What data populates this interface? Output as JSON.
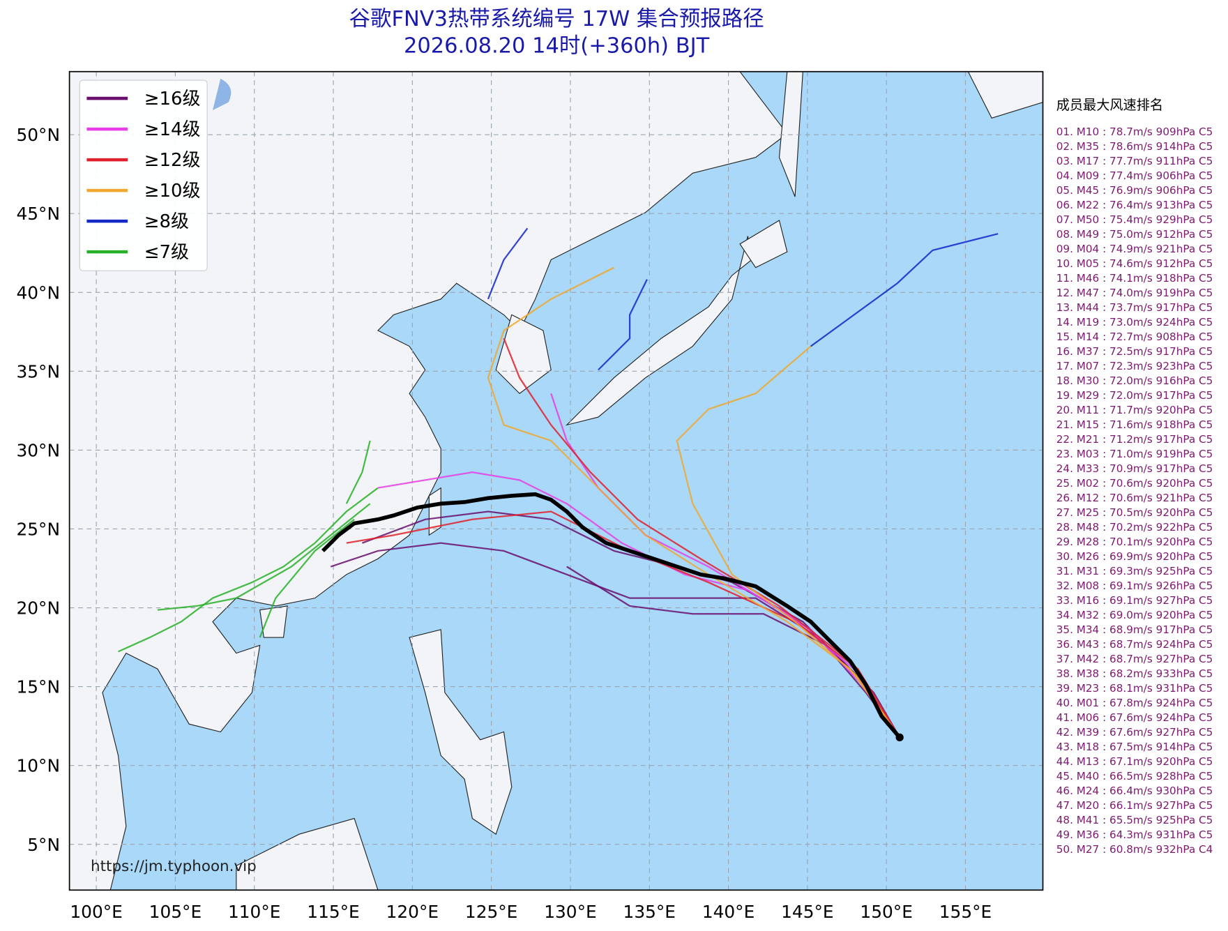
{
  "header": {
    "title": "谷歌FNV3热带系统编号 17W 集合预报路径",
    "subtitle": "2026.08.20 14时(+360h) BJT"
  },
  "map": {
    "lon_range": [
      98.3,
      159.9
    ],
    "lat_range": [
      2.1,
      54.0
    ],
    "lon_ticks": [
      {
        "value": 100,
        "label": "100°E"
      },
      {
        "value": 105,
        "label": "105°E"
      },
      {
        "value": 110,
        "label": "110°E"
      },
      {
        "value": 115,
        "label": "115°E"
      },
      {
        "value": 120,
        "label": "120°E"
      },
      {
        "value": 125,
        "label": "125°E"
      },
      {
        "value": 130,
        "label": "130°E"
      },
      {
        "value": 135,
        "label": "135°E"
      },
      {
        "value": 140,
        "label": "140°E"
      },
      {
        "value": 145,
        "label": "145°E"
      },
      {
        "value": 150,
        "label": "150°E"
      },
      {
        "value": 155,
        "label": "155°E"
      }
    ],
    "lat_ticks": [
      {
        "value": 5,
        "label": "5°N"
      },
      {
        "value": 10,
        "label": "10°N"
      },
      {
        "value": 15,
        "label": "15°N"
      },
      {
        "value": 20,
        "label": "20°N"
      },
      {
        "value": 25,
        "label": "25°N"
      },
      {
        "value": 30,
        "label": "30°N"
      },
      {
        "value": 35,
        "label": "35°N"
      },
      {
        "value": 40,
        "label": "40°N"
      },
      {
        "value": 45,
        "label": "45°N"
      },
      {
        "value": 50,
        "label": "50°N"
      }
    ],
    "legend": [
      {
        "label": "≥16级",
        "color": "#6a0f6e"
      },
      {
        "label": "≥14级",
        "color": "#e83ee8"
      },
      {
        "label": "≥12级",
        "color": "#e0202a"
      },
      {
        "label": "≥10级",
        "color": "#f0a830"
      },
      {
        "label": "≥8级",
        "color": "#1428c8"
      },
      {
        "label": "≤7级",
        "color": "#28b028"
      }
    ],
    "watermark": "https://jm.typhoon.vip"
  },
  "ranking": {
    "title": "成员最大风速排名",
    "items": [
      "01. M10 : 78.7m/s 909hPa C5",
      "02. M35 : 78.6m/s 914hPa C5",
      "03. M17 : 77.7m/s 911hPa C5",
      "04. M09 : 77.4m/s 906hPa C5",
      "05. M45 : 76.9m/s 906hPa C5",
      "06. M22 : 76.4m/s 913hPa C5",
      "07. M50 : 75.4m/s 929hPa C5",
      "08. M49 : 75.0m/s 912hPa C5",
      "09. M04 : 74.9m/s 921hPa C5",
      "10. M05 : 74.6m/s 912hPa C5",
      "11. M46 : 74.1m/s 918hPa C5",
      "12. M47 : 74.0m/s 919hPa C5",
      "13. M44 : 73.7m/s 917hPa C5",
      "14. M19 : 73.0m/s 924hPa C5",
      "15. M14 : 72.7m/s 908hPa C5",
      "16. M37 : 72.5m/s 917hPa C5",
      "17. M07 : 72.3m/s 923hPa C5",
      "18. M30 : 72.0m/s 916hPa C5",
      "19. M29 : 72.0m/s 917hPa C5",
      "20. M11 : 71.7m/s 920hPa C5",
      "21. M15 : 71.6m/s 918hPa C5",
      "22. M21 : 71.2m/s 917hPa C5",
      "23. M03 : 71.0m/s 919hPa C5",
      "24. M33 : 70.9m/s 917hPa C5",
      "25. M02 : 70.6m/s 920hPa C5",
      "26. M12 : 70.6m/s 921hPa C5",
      "27. M25 : 70.5m/s 920hPa C5",
      "28. M48 : 70.2m/s 922hPa C5",
      "29. M28 : 70.1m/s 920hPa C5",
      "30. M26 : 69.9m/s 920hPa C5",
      "31. M31 : 69.3m/s 925hPa C5",
      "32. M08 : 69.1m/s 926hPa C5",
      "33. M16 : 69.1m/s 927hPa C5",
      "34. M32 : 69.0m/s 920hPa C5",
      "35. M34 : 68.9m/s 917hPa C5",
      "36. M43 : 68.7m/s 924hPa C5",
      "37. M42 : 68.7m/s 927hPa C5",
      "38. M38 : 68.2m/s 933hPa C5",
      "39. M23 : 68.1m/s 931hPa C5",
      "40. M01 : 67.8m/s 924hPa C5",
      "41. M06 : 67.6m/s 924hPa C5",
      "42. M39 : 67.6m/s 927hPa C5",
      "43. M18 : 67.5m/s 914hPa C5",
      "44. M13 : 67.1m/s 920hPa C5",
      "45. M40 : 66.5m/s 928hPa C5",
      "46. M24 : 66.4m/s 930hPa C5",
      "47. M20 : 66.1m/s 927hPa C5",
      "48. M41 : 65.5m/s 925hPa C5",
      "49. M36 : 64.3m/s 931hPa C5",
      "50. M27 : 60.8m/s 932hPa C4"
    ]
  }
}
